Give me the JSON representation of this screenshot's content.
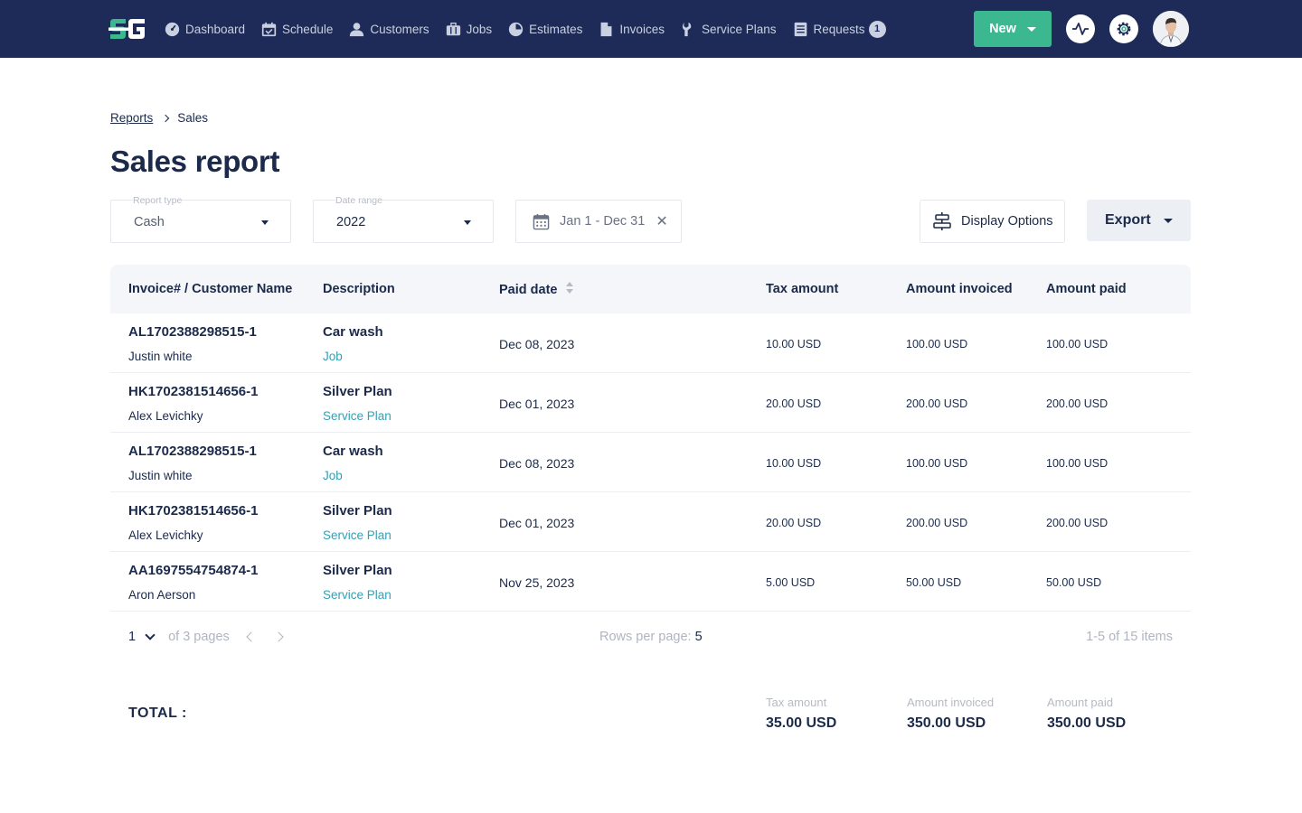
{
  "brand": {
    "logo_icon": "sg-logo",
    "accent_color": "#3bb88f",
    "nav_bg": "#1e2b58",
    "link_color": "#34a0b4"
  },
  "nav": {
    "items": [
      {
        "label": "Dashboard",
        "icon": "dashboard-icon"
      },
      {
        "label": "Schedule",
        "icon": "calendar-icon"
      },
      {
        "label": "Customers",
        "icon": "user-icon"
      },
      {
        "label": "Jobs",
        "icon": "briefcase-icon"
      },
      {
        "label": "Estimates",
        "icon": "pie-chart-icon"
      },
      {
        "label": "Invoices",
        "icon": "document-icon"
      },
      {
        "label": "Service Plans",
        "icon": "wrench-icon"
      },
      {
        "label": "Requests",
        "icon": "list-icon",
        "badge": "1"
      }
    ],
    "new_label": "New"
  },
  "breadcrumb": {
    "parent": "Reports",
    "current": "Sales"
  },
  "page_title": "Sales report",
  "filters": {
    "report_type": {
      "label": "Report type",
      "value": "Cash"
    },
    "date_range": {
      "label": "Date range",
      "value": "2022"
    },
    "dates": "Jan 1 - Dec 31",
    "clear": "✕",
    "display_options": "Display Options",
    "export": "Export"
  },
  "table": {
    "columns": [
      {
        "label": "Invoice# / Customer Name"
      },
      {
        "label": "Description"
      },
      {
        "label": "Paid date"
      },
      {
        "label": "Tax amount"
      },
      {
        "label": "Amount invoiced"
      },
      {
        "label": "Amount paid"
      }
    ],
    "rows": [
      {
        "invoice": "AL1702388298515-1",
        "customer": "Justin white",
        "description": "Car wash",
        "type": "Job",
        "paid_date": "Dec 08, 2023",
        "tax": "10.00 USD",
        "invoiced": "100.00 USD",
        "paid": "100.00 USD"
      },
      {
        "invoice": "HK1702381514656-1",
        "customer": "Alex Levichky",
        "description": "Silver Plan",
        "type": "Service Plan",
        "paid_date": "Dec 01, 2023",
        "tax": "20.00 USD",
        "invoiced": "200.00 USD",
        "paid": "200.00 USD"
      },
      {
        "invoice": "AL1702388298515-1",
        "customer": "Justin white",
        "description": "Car wash",
        "type": "Job",
        "paid_date": "Dec 08, 2023",
        "tax": "10.00 USD",
        "invoiced": "100.00 USD",
        "paid": "100.00 USD"
      },
      {
        "invoice": "HK1702381514656-1",
        "customer": "Alex Levichky",
        "description": "Silver Plan",
        "type": "Service Plan",
        "paid_date": "Dec 01, 2023",
        "tax": "20.00 USD",
        "invoiced": "200.00 USD",
        "paid": "200.00 USD"
      },
      {
        "invoice": "AA1697554754874-1",
        "customer": "Aron Aerson",
        "description": "Silver Plan",
        "type": "Service Plan",
        "paid_date": "Nov 25, 2023",
        "tax": "5.00 USD",
        "invoiced": "50.00 USD",
        "paid": "50.00 USD"
      }
    ]
  },
  "pagination": {
    "page": "1",
    "of_pages": "of 3 pages",
    "rows_label": "Rows per page:",
    "rows_value": "5",
    "items": "1-5 of 15 items"
  },
  "totals": {
    "label": "TOTAL :",
    "tax_label": "Tax amount",
    "tax": "35.00 USD",
    "invoiced_label": "Amount invoiced",
    "invoiced": "350.00 USD",
    "paid_label": "Amount paid",
    "paid": "350.00 USD"
  }
}
